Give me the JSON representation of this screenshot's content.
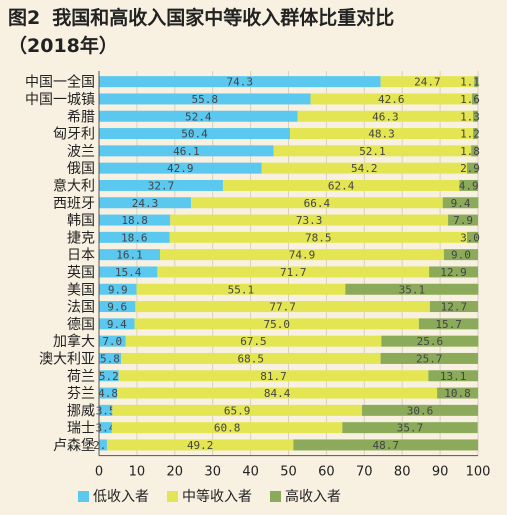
{
  "header": {
    "figure_number": "图2",
    "title": "我国和高收入国家中等收入群体比重对比",
    "subtitle": "（2018年）"
  },
  "colors": {
    "low": "#5bc8f0",
    "middle": "#e3e652",
    "high": "#8bab5b",
    "grid": "#d8d0c0",
    "axis": "#555555"
  },
  "chart_data": {
    "type": "bar",
    "orientation": "horizontal",
    "stacked": true,
    "title": "我国和高收入国家中等收入群体比重对比",
    "subtitle": "（2018年）",
    "categories": [
      "中国一全国",
      "中国一城镇",
      "希腊",
      "匈牙利",
      "波兰",
      "俄国",
      "意大利",
      "西班牙",
      "韩国",
      "捷克",
      "日本",
      "英国",
      "美国",
      "法国",
      "德国",
      "加拿大",
      "澳大利亚",
      "荷兰",
      "芬兰",
      "挪威",
      "瑞士",
      "卢森堡"
    ],
    "series": [
      {
        "name": "低收入者",
        "values": [
          74.3,
          55.8,
          52.4,
          50.4,
          46.1,
          42.9,
          32.7,
          24.3,
          18.8,
          18.6,
          16.1,
          15.4,
          9.9,
          9.6,
          9.4,
          7.0,
          5.8,
          5.2,
          4.8,
          3.5,
          3.4,
          2.1
        ],
        "labels": [
          "74.3",
          "55.8",
          "52.4",
          "50.4",
          "46.1",
          "42.9",
          "32.7",
          "24.3",
          "18.8",
          "18.6",
          "16.1",
          "15.4",
          "9.9",
          "9.6",
          "9.4",
          "7.0",
          "5.8",
          "5.2",
          "4.8",
          "3.5",
          "3.4",
          "2.1"
        ]
      },
      {
        "name": "中等收入者",
        "values": [
          24.7,
          42.6,
          46.3,
          48.3,
          52.1,
          54.2,
          62.4,
          66.4,
          73.3,
          78.5,
          74.9,
          71.7,
          55.1,
          77.7,
          75.0,
          67.5,
          68.5,
          81.7,
          84.4,
          65.9,
          60.8,
          49.2
        ],
        "labels": [
          "24.7",
          "42.6",
          "46.3",
          "48.3",
          "52.1",
          "54.2",
          "62.4",
          "66.4",
          "73.3",
          "78.5",
          "74.9",
          "71.7",
          "55.1",
          "77.7",
          "75.0",
          "67.5",
          "68.5",
          "81.7",
          "84.4",
          "65.9",
          "60.8",
          "49.2"
        ]
      },
      {
        "name": "高收入者",
        "values": [
          1.1,
          1.6,
          1.3,
          1.2,
          1.8,
          2.9,
          4.9,
          9.4,
          7.9,
          3.0,
          9.0,
          12.9,
          35.1,
          12.7,
          15.7,
          25.6,
          25.7,
          13.1,
          10.8,
          30.6,
          35.7,
          48.7
        ],
        "labels": [
          "1.1",
          "1.6",
          "1.3",
          "1.2",
          "1.8",
          "2.9",
          "4.9",
          "9.4",
          "7.9",
          "3.0",
          "9.0",
          "12.9",
          "35.1",
          "12.7",
          "15.7",
          "25.6",
          "25.7",
          "13.1",
          "10.8",
          "30.6",
          "35.7",
          "48.7"
        ]
      }
    ],
    "xlim": [
      0,
      100
    ],
    "xticks": [
      "0",
      "10",
      "20",
      "30",
      "40",
      "50",
      "60",
      "70",
      "80",
      "90",
      "100"
    ],
    "xlabel": "",
    "ylabel": "",
    "grid": true,
    "legend": "bottom"
  }
}
